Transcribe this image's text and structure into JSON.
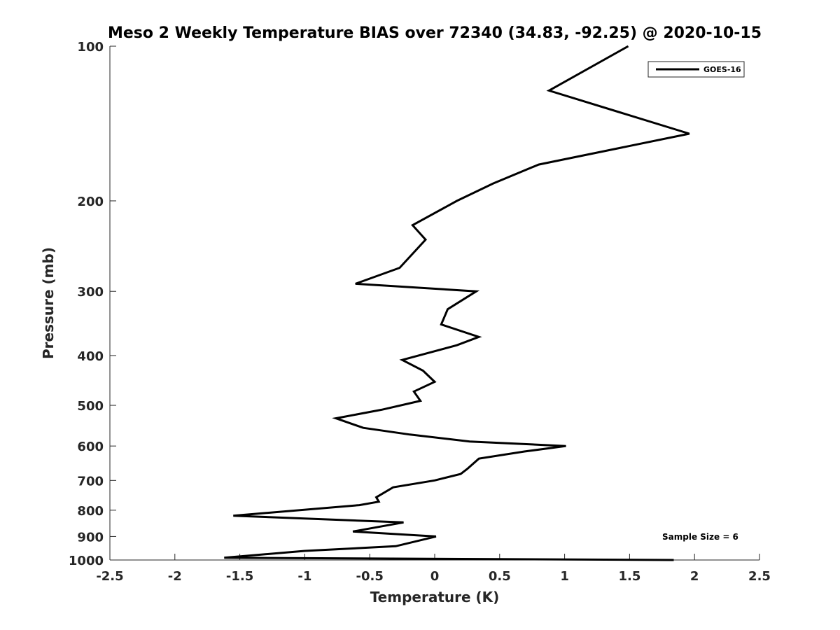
{
  "chart_data": {
    "type": "line",
    "title": "Meso 2 Weekly Temperature BIAS over 72340 (34.83, -92.25) @ 2020-10-15",
    "xlabel": "Temperature (K)",
    "ylabel": "Pressure (mb)",
    "xlim": [
      -2.5,
      2.5
    ],
    "ylim": [
      100,
      1000
    ],
    "y_scale": "log",
    "y_reversed": true,
    "grid": false,
    "legend_position": "top-right",
    "x_ticks": [
      "-2.5",
      "-2",
      "-1.5",
      "-1",
      "-0.5",
      "0",
      "0.5",
      "1",
      "1.5",
      "2",
      "2.5"
    ],
    "y_ticks": [
      "100",
      "200",
      "300",
      "400",
      "500",
      "600",
      "700",
      "800",
      "900",
      "1000"
    ],
    "annotation": "Sample Size = 6",
    "series": [
      {
        "name": "GOES-16",
        "color": "#000000",
        "points": [
          {
            "x": 1.49,
            "p": 100
          },
          {
            "x": 0.88,
            "p": 122
          },
          {
            "x": 1.96,
            "p": 148
          },
          {
            "x": 0.8,
            "p": 170
          },
          {
            "x": 0.45,
            "p": 185
          },
          {
            "x": 0.17,
            "p": 200
          },
          {
            "x": -0.17,
            "p": 223
          },
          {
            "x": -0.07,
            "p": 238
          },
          {
            "x": -0.27,
            "p": 270
          },
          {
            "x": -0.61,
            "p": 290
          },
          {
            "x": 0.32,
            "p": 300
          },
          {
            "x": 0.1,
            "p": 325
          },
          {
            "x": 0.05,
            "p": 348
          },
          {
            "x": 0.34,
            "p": 368
          },
          {
            "x": 0.17,
            "p": 382
          },
          {
            "x": -0.25,
            "p": 408
          },
          {
            "x": -0.09,
            "p": 428
          },
          {
            "x": 0.0,
            "p": 450
          },
          {
            "x": -0.16,
            "p": 470
          },
          {
            "x": -0.11,
            "p": 490
          },
          {
            "x": -0.41,
            "p": 510
          },
          {
            "x": -0.76,
            "p": 530
          },
          {
            "x": -0.55,
            "p": 553
          },
          {
            "x": -0.19,
            "p": 570
          },
          {
            "x": 0.27,
            "p": 588
          },
          {
            "x": 1.01,
            "p": 600
          },
          {
            "x": 0.69,
            "p": 615
          },
          {
            "x": 0.34,
            "p": 635
          },
          {
            "x": 0.25,
            "p": 665
          },
          {
            "x": 0.2,
            "p": 680
          },
          {
            "x": 0.0,
            "p": 700
          },
          {
            "x": -0.32,
            "p": 722
          },
          {
            "x": -0.45,
            "p": 755
          },
          {
            "x": -0.43,
            "p": 770
          },
          {
            "x": -0.58,
            "p": 782
          },
          {
            "x": -1.55,
            "p": 820
          },
          {
            "x": -0.24,
            "p": 845
          },
          {
            "x": -0.63,
            "p": 880
          },
          {
            "x": 0.01,
            "p": 900
          },
          {
            "x": -0.3,
            "p": 940
          },
          {
            "x": -1.0,
            "p": 960
          },
          {
            "x": -1.62,
            "p": 990
          },
          {
            "x": 1.84,
            "p": 1000
          }
        ]
      }
    ]
  }
}
